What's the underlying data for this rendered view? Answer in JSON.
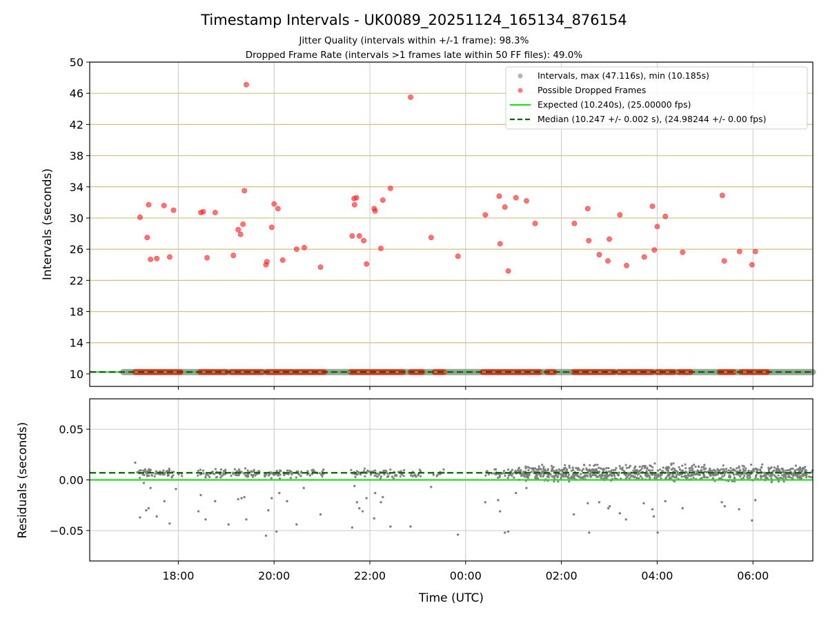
{
  "chart_data": [
    {
      "type": "scatter",
      "title": "Timestamp Intervals - UK0089_20251124_165134_876154",
      "subtitle_lines": [
        "Jitter Quality (intervals within +/-1 frame): 98.3%",
        "Dropped Frame Rate (intervals >1 frames late within 50 FF files): 49.0%"
      ],
      "xlabel": "",
      "ylabel": "Intervals (seconds)",
      "xlim": [
        16.15,
        31.25
      ],
      "ylim": [
        8.4,
        50
      ],
      "yticks": [
        10,
        14,
        18,
        22,
        26,
        30,
        34,
        38,
        42,
        46,
        50
      ],
      "ytick_labels": [
        "10",
        "14",
        "18",
        "22",
        "26",
        "30",
        "34",
        "38",
        "42",
        "46",
        "50"
      ],
      "xticks": [
        18,
        20,
        22,
        24,
        26,
        28,
        30
      ],
      "hlines": [
        {
          "name": "Expected (10.240s), (25.00000 fps)",
          "value": 10.24,
          "color": "#22dd22",
          "style": "solid"
        },
        {
          "name": "Median (10.247 +/- 0.002 s), (24.98244 +/- 0.00 fps)",
          "value": 10.247,
          "color": "#006400",
          "style": "dashed"
        }
      ],
      "legend_position": "top-right",
      "legend": [
        "Intervals, max (47.116s), min (10.185s)",
        "Possible Dropped Frames",
        "Expected (10.240s), (25.00000 fps)",
        "Median (10.247 +/- 0.002 s), (24.98244 +/- 0.00 fps)"
      ],
      "series": [
        {
          "name": "Possible Dropped Frames",
          "color": "#ff2020",
          "x": [
            17.2,
            17.35,
            17.42,
            17.38,
            17.55,
            17.7,
            17.82,
            17.9,
            18.47,
            18.52,
            18.6,
            18.77,
            19.15,
            19.25,
            19.3,
            19.35,
            19.38,
            19.42,
            19.83,
            19.85,
            19.95,
            20.0,
            20.08,
            20.18,
            20.47,
            20.63,
            20.97,
            21.63,
            21.67,
            21.68,
            21.72,
            21.78,
            21.87,
            21.93,
            22.09,
            22.11,
            22.23,
            22.27,
            22.43,
            22.85,
            23.28,
            23.84,
            24.41,
            24.7,
            24.72,
            24.82,
            24.89,
            25.05,
            25.27,
            25.45,
            26.27,
            26.55,
            26.57,
            26.79,
            26.97,
            27.0,
            27.22,
            27.36,
            27.73,
            27.9,
            27.94,
            28.0,
            28.17,
            28.53,
            29.36,
            29.4,
            29.72,
            29.98,
            30.05
          ],
          "y": [
            30.1,
            27.5,
            24.7,
            31.7,
            24.8,
            31.6,
            25.0,
            31.0,
            30.7,
            30.8,
            24.9,
            30.7,
            25.2,
            28.5,
            27.9,
            29.2,
            33.5,
            47.1,
            24.0,
            24.4,
            28.8,
            31.8,
            31.2,
            24.6,
            26.0,
            26.2,
            23.7,
            27.7,
            32.5,
            31.7,
            32.6,
            27.7,
            27.1,
            24.1,
            31.2,
            30.9,
            26.1,
            32.3,
            33.8,
            45.5,
            27.5,
            25.1,
            30.4,
            32.8,
            26.7,
            31.4,
            23.2,
            32.6,
            32.2,
            29.3,
            29.3,
            31.2,
            27.1,
            25.3,
            24.5,
            27.3,
            30.4,
            23.9,
            25.0,
            31.5,
            25.9,
            28.9,
            30.2,
            25.6,
            32.9,
            24.5,
            25.7,
            24.0,
            25.7
          ]
        }
      ]
    },
    {
      "type": "scatter",
      "title": "",
      "xlabel": "Time (UTC)",
      "ylabel": "Residuals (seconds)",
      "xlim": [
        16.15,
        31.25
      ],
      "ylim": [
        -0.08,
        0.08
      ],
      "yticks": [
        0.05,
        0.0,
        -0.05
      ],
      "ytick_labels": [
        "0.05",
        "0.00",
        "−0.05"
      ],
      "xticks": [
        18,
        20,
        22,
        24,
        26,
        28,
        30
      ],
      "xtick_labels": [
        "18:00",
        "20:00",
        "22:00",
        "00:00",
        "02:00",
        "04:00",
        "06:00"
      ],
      "hlines": [
        {
          "name": "Expected",
          "value": 0.0,
          "color": "#22dd22",
          "style": "solid"
        },
        {
          "name": "Median",
          "value": 0.007,
          "color": "#006400",
          "style": "dashed"
        }
      ],
      "series": [
        {
          "name": "Residuals",
          "color": "#808080",
          "x": [
            17.1,
            17.2,
            17.28,
            17.33,
            17.38,
            17.42,
            17.55,
            17.71,
            17.82,
            17.95,
            18.42,
            18.47,
            18.57,
            18.77,
            19.05,
            19.25,
            19.32,
            19.38,
            19.42,
            19.83,
            19.88,
            19.95,
            20.05,
            20.11,
            20.27,
            20.47,
            20.62,
            20.97,
            21.63,
            21.68,
            21.73,
            21.78,
            21.85,
            21.93,
            22.09,
            22.11,
            22.23,
            22.27,
            22.43,
            22.85,
            23.28,
            23.84,
            24.41,
            24.68,
            24.72,
            24.82,
            24.89,
            25.05,
            25.27,
            26.26,
            26.55,
            26.58,
            26.79,
            26.98,
            27.01,
            27.22,
            27.35,
            27.72,
            27.9,
            27.93,
            28.01,
            28.17,
            28.53,
            29.35,
            29.41,
            29.71,
            29.98,
            30.05
          ],
          "y": [
            0.017,
            -0.037,
            -0.003,
            -0.03,
            -0.028,
            -0.008,
            -0.036,
            -0.021,
            -0.043,
            -0.009,
            -0.031,
            -0.015,
            -0.039,
            -0.021,
            -0.044,
            -0.019,
            -0.018,
            -0.017,
            -0.039,
            -0.055,
            -0.03,
            -0.018,
            -0.051,
            -0.013,
            -0.021,
            -0.044,
            -0.008,
            -0.034,
            -0.047,
            -0.006,
            -0.022,
            -0.028,
            -0.031,
            -0.018,
            -0.038,
            -0.013,
            -0.022,
            -0.017,
            -0.046,
            -0.046,
            -0.007,
            -0.054,
            -0.022,
            -0.02,
            -0.031,
            -0.052,
            -0.051,
            -0.013,
            -0.008,
            -0.034,
            -0.023,
            -0.052,
            -0.022,
            -0.028,
            -0.026,
            -0.033,
            -0.039,
            -0.023,
            -0.029,
            -0.036,
            -0.052,
            -0.021,
            -0.028,
            -0.022,
            -0.026,
            -0.029,
            -0.04,
            -0.02
          ]
        }
      ]
    }
  ]
}
